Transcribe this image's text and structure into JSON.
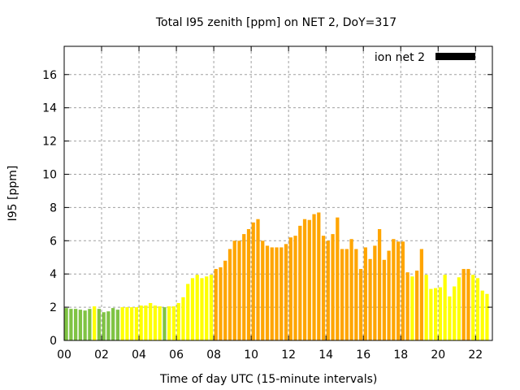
{
  "chart_data": {
    "type": "bar",
    "title": "Total I95 zenith [ppm] on NET 2, DoY=317",
    "xlabel": "Time of day UTC (15-minute intervals)",
    "ylabel": "I95 [ppm]",
    "xlim": [
      0,
      22.9
    ],
    "ylim": [
      0,
      17.7
    ],
    "grid": true,
    "xticks": [
      "00",
      "02",
      "04",
      "06",
      "08",
      "10",
      "12",
      "14",
      "16",
      "18",
      "20",
      "22"
    ],
    "yticks": [
      "0",
      "2",
      "4",
      "6",
      "8",
      "10",
      "12",
      "14",
      "16"
    ],
    "legend": {
      "label": "ion net 2",
      "color": "#000000",
      "placement": "top-right"
    },
    "colors": {
      "g": "#7fc343",
      "y": "#ffff00",
      "o": "#ffa500"
    },
    "interval_hours": 0.25,
    "values": [
      1.95,
      1.9,
      1.9,
      1.85,
      1.8,
      1.9,
      2.05,
      1.9,
      1.7,
      1.75,
      1.95,
      1.85,
      2.0,
      2.0,
      2.0,
      2.0,
      2.1,
      2.1,
      2.25,
      2.1,
      2.05,
      2.0,
      2.05,
      2.05,
      2.25,
      2.6,
      3.4,
      3.75,
      3.95,
      3.75,
      3.85,
      3.95,
      4.3,
      4.4,
      4.8,
      5.5,
      6.0,
      6.0,
      6.4,
      6.7,
      7.1,
      7.3,
      6.0,
      5.7,
      5.6,
      5.6,
      5.6,
      5.8,
      6.2,
      6.3,
      6.9,
      7.3,
      7.25,
      7.6,
      7.7,
      6.3,
      6.0,
      6.4,
      7.4,
      5.5,
      5.5,
      6.1,
      5.5,
      4.3,
      5.6,
      4.9,
      5.7,
      6.7,
      4.85,
      5.4,
      6.1,
      5.95,
      5.95,
      4.1,
      3.85,
      4.2,
      5.5,
      3.95,
      3.1,
      3.15,
      3.2,
      3.95,
      2.65,
      3.25,
      3.8,
      4.3,
      4.3,
      3.95,
      3.75,
      3.0,
      2.8
    ],
    "bar_colors": "ggggggyggggg"
  }
}
